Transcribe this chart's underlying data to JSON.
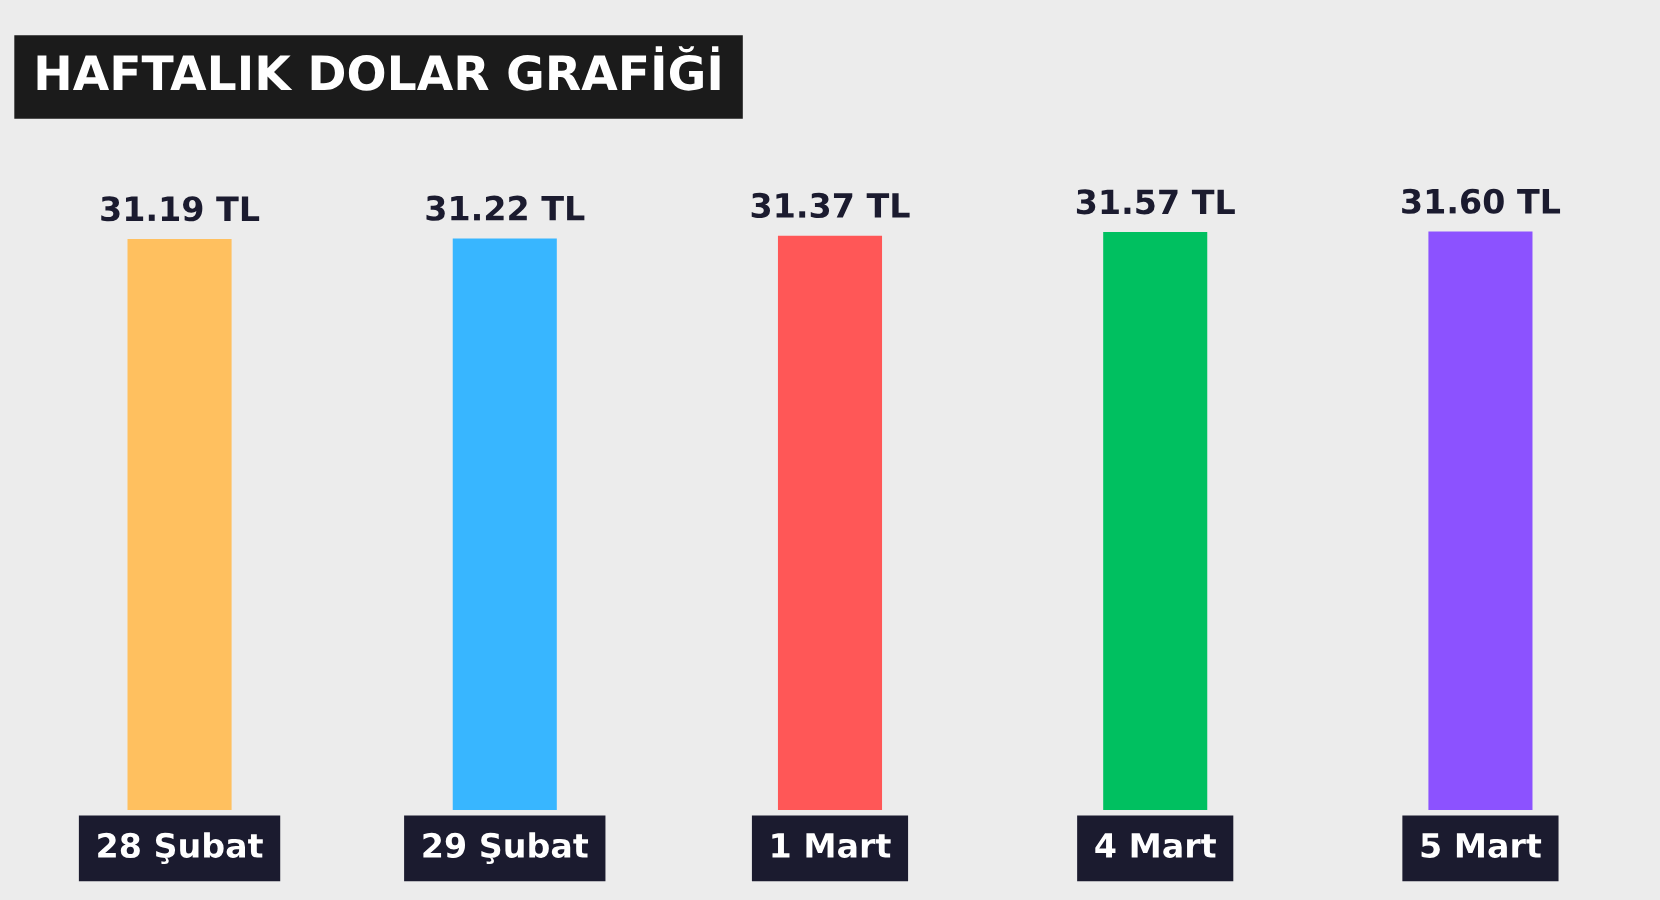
{
  "chart_data": {
    "type": "bar",
    "title": "HAFTALIK DOLAR GRAFİĞİ",
    "categories": [
      "28 Şubat",
      "29 Şubat",
      "1 Mart",
      "4 Mart",
      "5 Mart"
    ],
    "values": [
      31.19,
      31.22,
      31.37,
      31.57,
      31.6
    ],
    "colors": [
      "#ffc05f",
      "#38b6ff",
      "#ff5757",
      "#00c060",
      "#8c52ff"
    ],
    "value_labels": [
      "31.19 TL",
      "31.22 TL",
      "31.37 TL",
      "31.57 TL",
      "31.60 TL"
    ],
    "grid": false,
    "legend": false
  }
}
